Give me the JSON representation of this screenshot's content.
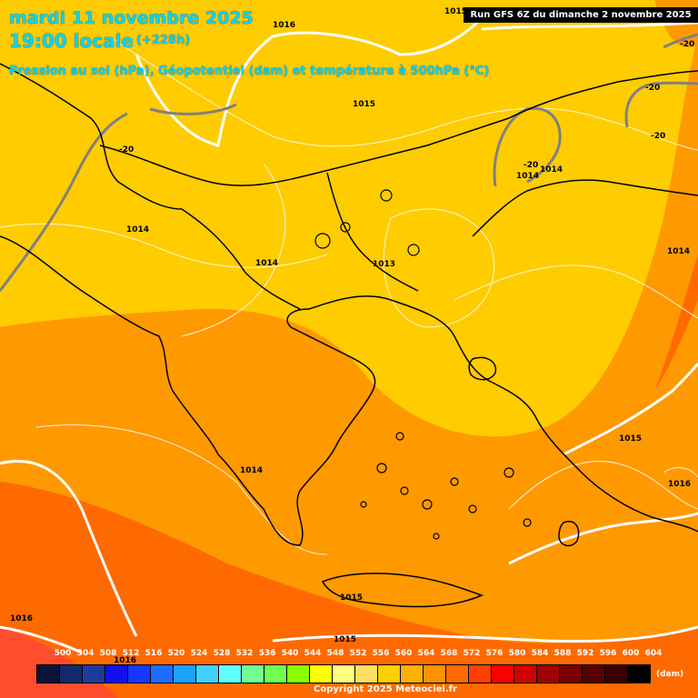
{
  "header": {
    "date": "mardi 11 novembre 2025",
    "time": "19:00 locale",
    "offset": "(+228h)",
    "subtitle": "Pression au sol (hPa), Géopotentiel (dam) et température à 500hPa (°C)",
    "run": "Run GFS 6Z du dimanche 2 novembre 2025"
  },
  "pressure_labels": [
    "1016",
    "1015",
    "1015",
    "1014",
    "1014",
    "1013",
    "1014",
    "1014",
    "1014",
    "1015",
    "1016",
    "1014",
    "1015",
    "1016",
    "1015",
    "1016"
  ],
  "temp_labels": [
    "-20",
    "-20",
    "-20",
    "-20",
    "-20"
  ],
  "legend": {
    "values": [
      "500",
      "504",
      "508",
      "512",
      "516",
      "520",
      "524",
      "528",
      "532",
      "536",
      "540",
      "544",
      "548",
      "552",
      "556",
      "560",
      "564",
      "568",
      "572",
      "576",
      "580",
      "584",
      "588",
      "592",
      "596",
      "600",
      "604"
    ],
    "colors": [
      "#0a1238",
      "#102a6a",
      "#1a3c9a",
      "#1010ee",
      "#1438ff",
      "#1c6cff",
      "#1aa2ff",
      "#40d0ff",
      "#60ffff",
      "#70ff90",
      "#70ff50",
      "#88ff00",
      "#ffff00",
      "#ffff80",
      "#ffe060",
      "#ffd000",
      "#ffb000",
      "#ff9000",
      "#ff6a00",
      "#ff4000",
      "#ff0000",
      "#d00000",
      "#a00000",
      "#7a0000",
      "#580000",
      "#3a0000",
      "#000000"
    ],
    "unit": "(dam)"
  },
  "copyright": "Copyright 2025 Meteociel.fr",
  "colors": {
    "z564": "#ffcc00",
    "z568": "#ff9900",
    "z572": "#ff6a00",
    "z576": "#ff4d2e",
    "title": "#00d8ff"
  }
}
